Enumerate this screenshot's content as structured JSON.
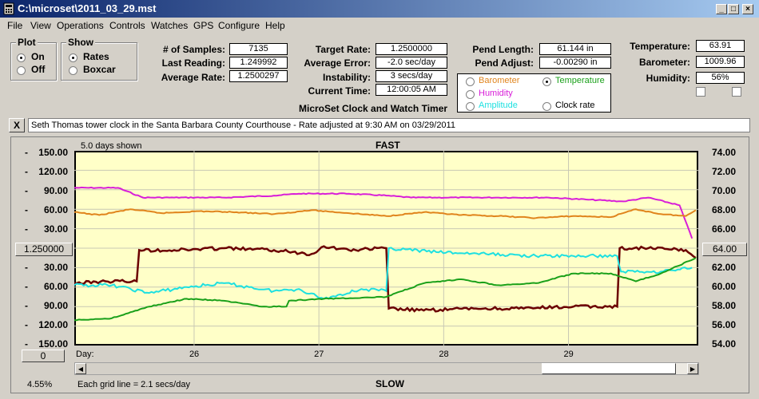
{
  "window": {
    "title": "C:\\microset\\2011_03_29.mst"
  },
  "menu": [
    "File",
    "View",
    "Operations",
    "Controls",
    "Watches",
    "GPS",
    "Configure",
    "Help"
  ],
  "plot_group": {
    "title": "Plot",
    "on": "On",
    "off": "Off"
  },
  "show_group": {
    "title": "Show",
    "rates": "Rates",
    "boxcar": "Boxcar"
  },
  "stats": {
    "samples_label": "# of Samples:",
    "samples": "7135",
    "last_label": "Last Reading:",
    "last": "1.249992",
    "avg_rate_label": "Average Rate:",
    "avg_rate": "1.2500297"
  },
  "targets": {
    "target_label": "Target Rate:",
    "target": "1.2500000",
    "avg_err_label": "Average Error:",
    "avg_err": "-2.0 sec/day",
    "instab_label": "Instability:",
    "instab": "3 secs/day",
    "time_label": "Current Time:",
    "time": "12:00:05 AM"
  },
  "app_name": "MicroSet Clock and Watch Timer",
  "pend": {
    "length_label": "Pend Length:",
    "length": "61.144 in",
    "adjust_label": "Pend Adjust:",
    "adjust": "-0.00290 in"
  },
  "env": {
    "temp_label": "Temperature:",
    "temp": "63.91",
    "baro_label": "Barometer:",
    "baro": "1009.96",
    "hum_label": "Humidity:",
    "hum": "56%"
  },
  "series_select": {
    "barometer": "Barometer",
    "temperature": "Temperature",
    "humidity": "Humidity",
    "amplitude": "Amplitude",
    "clock_rate": "Clock rate",
    "colors": {
      "barometer": "#e0841c",
      "temperature": "#1aa01a",
      "humidity": "#d81ed8",
      "amplitude": "#1ee0e0",
      "clock_rate": "#6b0000"
    }
  },
  "note": {
    "close": "X",
    "text": "Seth Thomas tower clock in the Santa Barbara County Courthouse - Rate adjusted at 9:30 AM on 03/29/2011"
  },
  "chart_labels": {
    "days_shown": "5.0 days shown",
    "fast": "FAST",
    "slow": "SLOW",
    "center_left": "1.250000",
    "center_right": "64.00",
    "left_button": "0",
    "percent": "4.55%",
    "grid_note": "Each grid line = 2.1 secs/day",
    "day_label": "Day:"
  },
  "chart_data": {
    "type": "line",
    "left_ticks": [
      "150.00",
      "120.00",
      "90.00",
      "60.00",
      "30.00",
      "30.00",
      "60.00",
      "90.00",
      "120.00",
      "150.00"
    ],
    "right_ticks": [
      "74.00",
      "72.00",
      "70.00",
      "68.00",
      "66.00",
      "62.00",
      "60.00",
      "58.00",
      "56.00",
      "54.00"
    ],
    "x_ticks": [
      "26",
      "27",
      "28",
      "29"
    ],
    "x_tick_days": [
      25.96,
      26.96,
      27.96,
      28.96
    ],
    "x_range": [
      25.0,
      30.0
    ],
    "y_range": [
      0,
      1
    ],
    "plot_bg": "#ffffc8",
    "grid": true,
    "series": [
      {
        "key": "humidity",
        "color": "#d81ed8",
        "x": [
          25.0,
          25.35,
          25.55,
          25.8,
          26.2,
          26.6,
          26.8,
          27.2,
          27.5,
          27.7,
          28.0,
          28.4,
          28.8,
          29.1,
          29.4,
          29.6,
          29.85,
          29.95
        ],
        "y": [
          0.81,
          0.81,
          0.76,
          0.76,
          0.76,
          0.77,
          0.78,
          0.78,
          0.77,
          0.76,
          0.76,
          0.76,
          0.76,
          0.75,
          0.74,
          0.76,
          0.72,
          0.55
        ]
      },
      {
        "key": "barometer",
        "color": "#e0841c",
        "x": [
          25.0,
          25.2,
          25.45,
          25.7,
          26.0,
          26.3,
          26.6,
          26.9,
          27.2,
          27.5,
          27.8,
          28.1,
          28.4,
          28.7,
          29.0,
          29.3,
          29.5,
          29.7,
          29.9,
          29.98
        ],
        "y": [
          0.685,
          0.67,
          0.7,
          0.68,
          0.69,
          0.685,
          0.675,
          0.695,
          0.68,
          0.665,
          0.685,
          0.67,
          0.665,
          0.655,
          0.665,
          0.66,
          0.7,
          0.675,
          0.665,
          0.695
        ]
      },
      {
        "key": "clock_rate",
        "color": "#6b0000",
        "x": [
          25.0,
          25.25,
          25.5,
          25.52,
          25.8,
          26.2,
          26.6,
          26.9,
          27.0,
          27.2,
          27.5,
          27.52,
          27.8,
          28.2,
          28.6,
          29.0,
          29.35,
          29.37,
          29.6,
          29.9,
          29.98
        ],
        "y": [
          0.32,
          0.33,
          0.33,
          0.49,
          0.49,
          0.5,
          0.49,
          0.47,
          0.51,
          0.49,
          0.5,
          0.19,
          0.18,
          0.19,
          0.19,
          0.2,
          0.2,
          0.5,
          0.5,
          0.49,
          0.45
        ]
      },
      {
        "key": "amplitude",
        "color": "#1ee0e0",
        "x": [
          25.0,
          25.3,
          25.6,
          25.9,
          26.2,
          26.4,
          26.6,
          26.8,
          27.0,
          27.3,
          27.5,
          27.52,
          27.9,
          28.3,
          28.7,
          29.0,
          29.35,
          29.38,
          29.7,
          29.95
        ],
        "y": [
          0.31,
          0.31,
          0.27,
          0.3,
          0.32,
          0.3,
          0.28,
          0.29,
          0.24,
          0.29,
          0.28,
          0.5,
          0.48,
          0.47,
          0.46,
          0.46,
          0.46,
          0.38,
          0.38,
          0.4
        ]
      },
      {
        "key": "temperature",
        "color": "#1aa01a",
        "x": [
          25.0,
          25.3,
          25.6,
          25.9,
          26.2,
          26.5,
          26.7,
          26.72,
          27.0,
          27.5,
          27.8,
          28.1,
          28.4,
          28.7,
          29.0,
          29.3,
          29.5,
          29.7,
          29.98
        ],
        "y": [
          0.13,
          0.14,
          0.2,
          0.24,
          0.23,
          0.2,
          0.2,
          0.23,
          0.24,
          0.25,
          0.32,
          0.34,
          0.31,
          0.32,
          0.37,
          0.37,
          0.33,
          0.37,
          0.45
        ]
      }
    ]
  }
}
